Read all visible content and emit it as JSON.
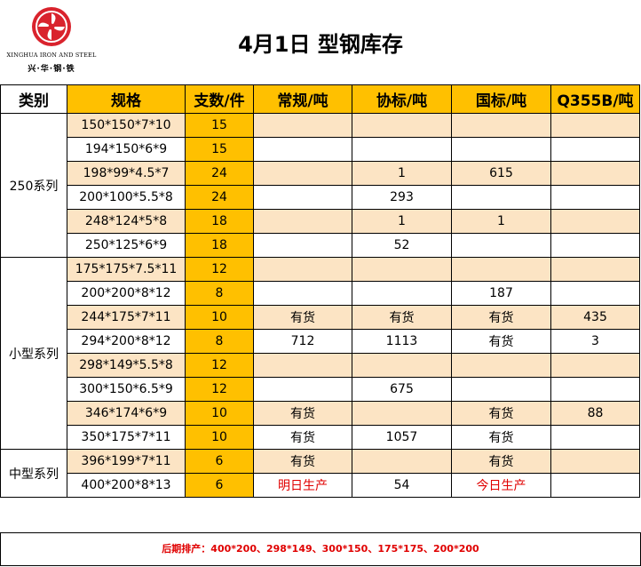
{
  "header": {
    "title": "4月1日 型钢库存",
    "logo": {
      "en": "XINGHUA IRON AND STEEL",
      "cn": "兴·华·钢·铁",
      "icon": "pinwheel-logo-icon",
      "color": "#D9232D"
    }
  },
  "columns": [
    "类别",
    "规格",
    "支数/件",
    "常规/吨",
    "协标/吨",
    "国标/吨",
    "Q355B/吨"
  ],
  "colors": {
    "orange": "#FFC000",
    "peach": "#FCE4C4",
    "red": "#E00000"
  },
  "groups": [
    {
      "name": "250系列",
      "rows": [
        {
          "spec": "150*150*7*10",
          "count": "15",
          "regular": "",
          "assoc": "",
          "national": "",
          "q355b": ""
        },
        {
          "spec": "194*150*6*9",
          "count": "15",
          "regular": "",
          "assoc": "",
          "national": "",
          "q355b": ""
        },
        {
          "spec": "198*99*4.5*7",
          "count": "24",
          "regular": "",
          "assoc": "1",
          "national": "615",
          "q355b": ""
        },
        {
          "spec": "200*100*5.5*8",
          "count": "24",
          "regular": "",
          "assoc": "293",
          "national": "",
          "q355b": ""
        },
        {
          "spec": "248*124*5*8",
          "count": "18",
          "regular": "",
          "assoc": "1",
          "national": "1",
          "q355b": ""
        },
        {
          "spec": "250*125*6*9",
          "count": "18",
          "regular": "",
          "assoc": "52",
          "national": "",
          "q355b": ""
        }
      ]
    },
    {
      "name": "小型系列",
      "rows": [
        {
          "spec": "175*175*7.5*11",
          "count": "12",
          "regular": "",
          "assoc": "",
          "national": "",
          "q355b": ""
        },
        {
          "spec": "200*200*8*12",
          "count": "8",
          "regular": "",
          "assoc": "",
          "national": "187",
          "q355b": ""
        },
        {
          "spec": "244*175*7*11",
          "count": "10",
          "regular": "有货",
          "assoc": "有货",
          "national": "有货",
          "q355b": "435"
        },
        {
          "spec": "294*200*8*12",
          "count": "8",
          "regular": "712",
          "assoc": "1113",
          "national": "有货",
          "q355b": "3"
        },
        {
          "spec": "298*149*5.5*8",
          "count": "12",
          "regular": "",
          "assoc": "",
          "national": "",
          "q355b": ""
        },
        {
          "spec": "300*150*6.5*9",
          "count": "12",
          "regular": "",
          "assoc": "675",
          "national": "",
          "q355b": ""
        },
        {
          "spec": "346*174*6*9",
          "count": "10",
          "regular": "有货",
          "assoc": "",
          "national": "有货",
          "q355b": "88"
        },
        {
          "spec": "350*175*7*11",
          "count": "10",
          "regular": "有货",
          "assoc": "1057",
          "national": "有货",
          "q355b": ""
        }
      ]
    },
    {
      "name": "中型系列",
      "rows": [
        {
          "spec": "396*199*7*11",
          "count": "6",
          "regular": "有货",
          "assoc": "",
          "national": "有货",
          "q355b": ""
        },
        {
          "spec": "400*200*8*13",
          "count": "6",
          "regular": "明日生产",
          "assoc": "54",
          "national": "今日生产",
          "q355b": ""
        }
      ]
    }
  ],
  "red_values": [
    "明日生产",
    "今日生产"
  ],
  "footer": {
    "note": "后期排产：400*200、298*149、300*150、175*175、200*200"
  }
}
